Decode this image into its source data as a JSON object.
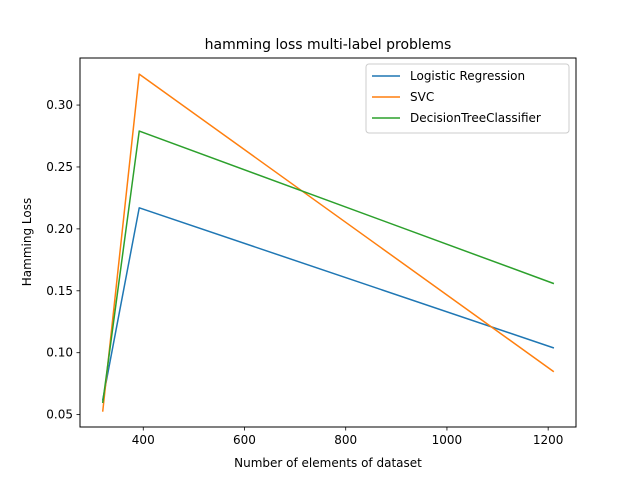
{
  "chart_data": {
    "type": "line",
    "title": "hamming loss multi-label problems",
    "xlabel": "Number of elements of dataset",
    "ylabel": "Hamming Loss",
    "xlim": [
      275,
      1255
    ],
    "ylim": [
      0.04,
      0.338
    ],
    "xticks": [
      400,
      600,
      800,
      1000,
      1200
    ],
    "yticks": [
      0.05,
      0.1,
      0.15,
      0.2,
      0.25,
      0.3
    ],
    "xtick_labels": [
      "400",
      "600",
      "800",
      "1000",
      "1200"
    ],
    "ytick_labels": [
      "0.05",
      "0.10",
      "0.15",
      "0.20",
      "0.25",
      "0.30"
    ],
    "grid": false,
    "legend_position": "top-right",
    "x": [
      320,
      392,
      1210
    ],
    "series": [
      {
        "name": "Logistic Regression",
        "color": "#1f77b4",
        "values": [
          0.062,
          0.217,
          0.104
        ]
      },
      {
        "name": "SVC",
        "color": "#ff7f0e",
        "values": [
          0.053,
          0.325,
          0.085
        ]
      },
      {
        "name": "DecisionTreeClassifier",
        "color": "#2ca02c",
        "values": [
          0.06,
          0.279,
          0.156
        ]
      }
    ]
  }
}
